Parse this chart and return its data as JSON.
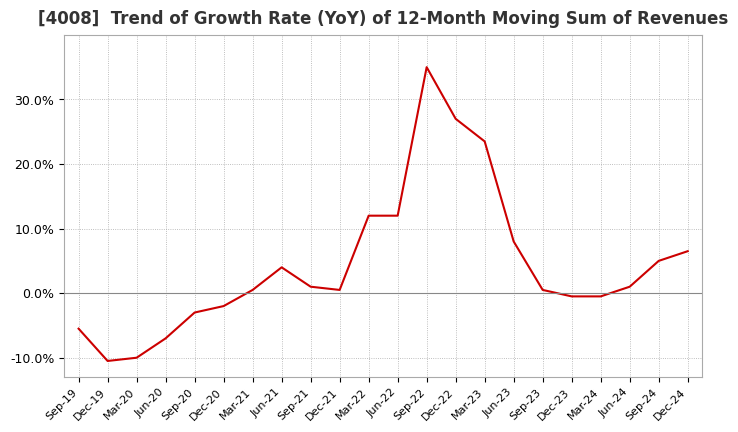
{
  "title": "[4008]  Trend of Growth Rate (YoY) of 12-Month Moving Sum of Revenues",
  "title_fontsize": 12,
  "line_color": "#cc0000",
  "background_color": "#ffffff",
  "plot_bg_color": "#ffffff",
  "grid_color": "#aaaaaa",
  "ylim": [
    -0.13,
    0.4
  ],
  "yticks": [
    -0.1,
    0.0,
    0.1,
    0.2,
    0.3
  ],
  "ytick_labels": [
    "-10.0%",
    "0.0%",
    "10.0%",
    "20.0%",
    "30.0%"
  ],
  "dates": [
    "Sep-19",
    "Dec-19",
    "Mar-20",
    "Jun-20",
    "Sep-20",
    "Dec-20",
    "Mar-21",
    "Jun-21",
    "Sep-21",
    "Dec-21",
    "Mar-22",
    "Jun-22",
    "Sep-22",
    "Dec-22",
    "Mar-23",
    "Jun-23",
    "Sep-23",
    "Dec-23",
    "Mar-24",
    "Jun-24",
    "Sep-24",
    "Dec-24"
  ],
  "values": [
    -0.055,
    -0.105,
    -0.1,
    -0.07,
    -0.03,
    -0.02,
    0.005,
    0.04,
    0.01,
    0.005,
    0.12,
    0.12,
    0.35,
    0.27,
    0.235,
    0.08,
    0.005,
    -0.005,
    -0.005,
    0.01,
    0.05,
    0.065
  ]
}
